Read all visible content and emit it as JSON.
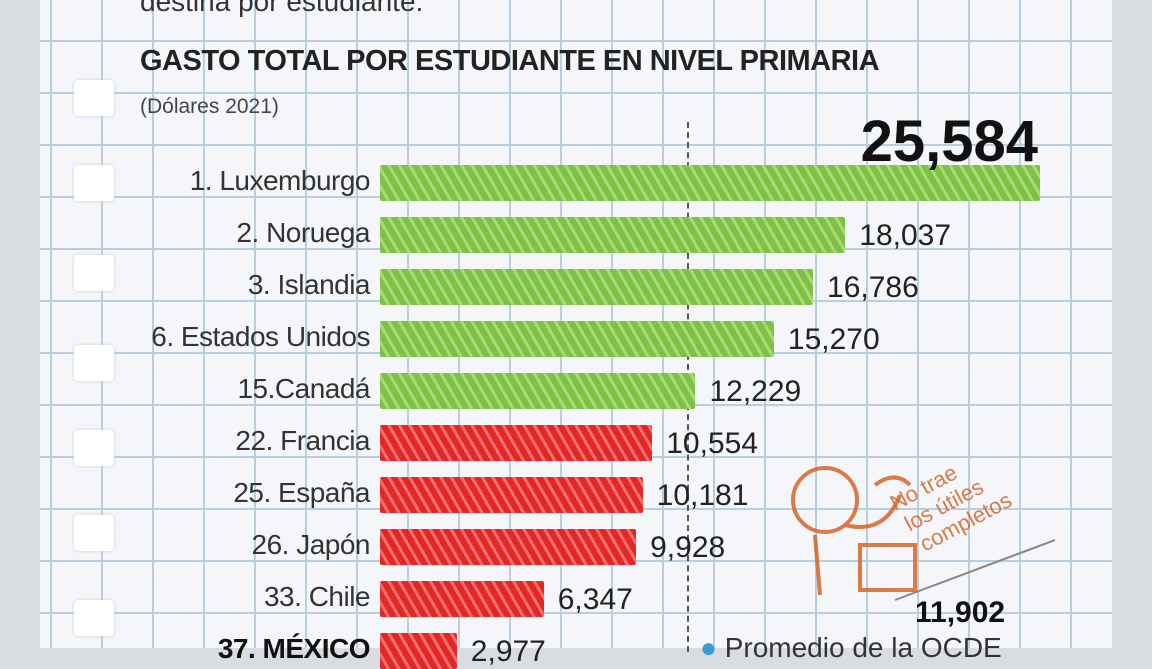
{
  "intro_text": "destina por estudiante.",
  "chart_data": {
    "type": "bar",
    "orientation": "horizontal",
    "title": "GASTO TOTAL POR ESTUDIANTE EN NIVEL PRIMARIA",
    "subtitle": "(Dólares 2021)",
    "categories": [
      "1. Luxemburgo",
      "2. Noruega",
      "3. Islandia",
      "6. Estados Unidos",
      "15.Canadá",
      "22. Francia",
      "25. España",
      "26. Japón",
      "33. Chile",
      "37. MÉXICO"
    ],
    "values": [
      25584,
      18037,
      16786,
      15270,
      12229,
      10554,
      10181,
      9928,
      6347,
      2977
    ],
    "value_labels": [
      "25,584",
      "18,037",
      "16,786",
      "15,270",
      "12,229",
      "10,554",
      "10,181",
      "9,928",
      "6,347",
      "2,977"
    ],
    "colors": [
      "#7dc242",
      "#7dc242",
      "#7dc242",
      "#7dc242",
      "#7dc242",
      "#e32626",
      "#e32626",
      "#e32626",
      "#e32626",
      "#e32626"
    ],
    "reference_line": {
      "label": "Promedio de la OCDE",
      "value": 11902,
      "value_label": "11,902"
    },
    "xlim": [
      0,
      25584
    ]
  },
  "stamp": {
    "text_lines": [
      "No trae",
      "los útiles",
      "completos"
    ],
    "color": "#d5652a"
  }
}
